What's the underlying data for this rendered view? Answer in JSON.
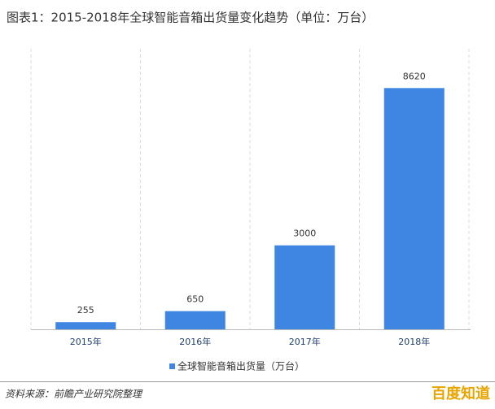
{
  "chart_data": {
    "type": "bar",
    "title": "图表1：2015-2018年全球智能音箱出货量变化趋势（单位：万台）",
    "categories": [
      "2015年",
      "2016年",
      "2017年",
      "2018年"
    ],
    "series": [
      {
        "name": "全球智能音箱出货量（万台）",
        "color": "#3f86e3",
        "values": [
          255,
          650,
          3000,
          8620
        ]
      }
    ],
    "ylim": [
      0,
      9500
    ],
    "source": "资料来源：前瞻产业研究院整理",
    "watermark": "百度知道"
  }
}
